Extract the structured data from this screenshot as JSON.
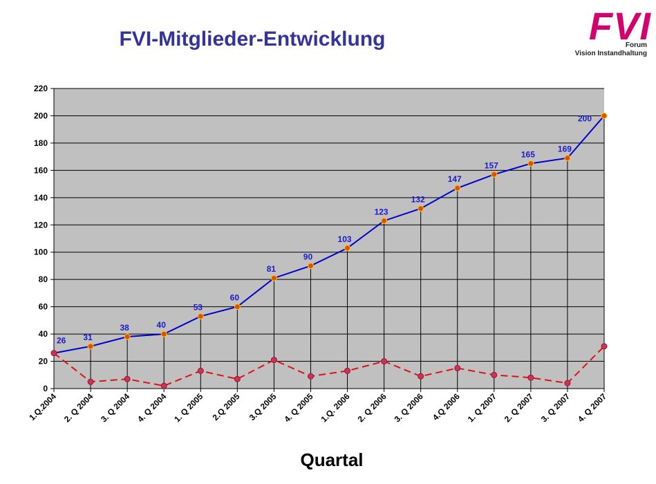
{
  "title": "FVI-Mitglieder-Entwicklung",
  "logo": {
    "mark": "FVI",
    "line1": "Forum",
    "line2": "Vision Instandhaltung",
    "color": "#d4006e"
  },
  "chart_data": {
    "type": "line",
    "categories": [
      "1.Q.2004",
      "2. Q 2004",
      "3. Q 2004",
      "4. Q 2004",
      "1. Q 2005",
      "2.Q 2005",
      "3.Q 2005",
      "4. Q 2005",
      "1.Q. 2006",
      "2. Q 2006",
      "3. Q 2006",
      "4.Q 2006",
      "1. Q 2007",
      "2. Q 2007",
      "3. Q 2007",
      "4. Q 2007"
    ],
    "series": [
      {
        "values": [
          26,
          31,
          38,
          40,
          53,
          60,
          81,
          90,
          103,
          123,
          132,
          147,
          157,
          165,
          169,
          200
        ],
        "color": "#0000cc",
        "marker": "#e05000",
        "style": "solid",
        "labels": true
      },
      {
        "values": [
          26,
          5,
          7,
          2,
          13,
          7,
          21,
          9,
          13,
          20,
          9,
          15,
          10,
          8,
          4,
          31
        ],
        "color": "#dd1111",
        "marker": "#cc3355",
        "style": "dashed",
        "labels": false
      }
    ],
    "xlabel": "Quartal",
    "ylim": [
      0,
      220
    ],
    "yticks": [
      0,
      20,
      40,
      60,
      80,
      100,
      120,
      140,
      160,
      180,
      200,
      220
    ],
    "grid": true,
    "plot_background": "#c0c0c0"
  }
}
